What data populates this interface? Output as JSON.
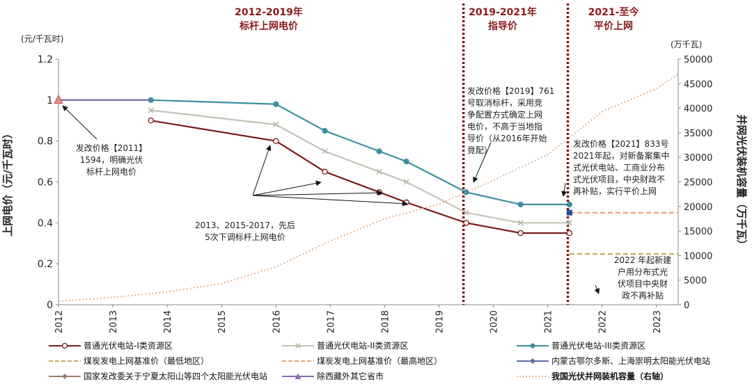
{
  "chart_data": {
    "type": "line",
    "ylabel": "上网电价（元/千瓦时）",
    "y2label": "并网光伏装机容量（万千瓦）",
    "y_unit": "(元/千瓦时)",
    "y2_unit": "(万千瓦)",
    "ylim": [
      0,
      1.2
    ],
    "y2lim": [
      0,
      50000
    ],
    "yticks": [
      "0",
      "0.2",
      "0.4",
      "0.6",
      "0.8",
      "1",
      "1.2"
    ],
    "y2ticks": [
      "0",
      "5000",
      "10000",
      "15000",
      "20000",
      "25000",
      "30000",
      "35000",
      "40000",
      "45000",
      "50000"
    ],
    "xticks": [
      "2012",
      "2013",
      "2014",
      "2015",
      "2016",
      "2017",
      "2018",
      "2019",
      "2020",
      "2021",
      "2022",
      "2023"
    ],
    "xlim": [
      2012,
      2023.4
    ],
    "grid": false,
    "periods": [
      {
        "line1": "2012-2019年",
        "line2": "标杆上网电价"
      },
      {
        "line1": "2019-2021年",
        "line2": "指导价"
      },
      {
        "line1": "2021-至今",
        "line2": "平价上网"
      }
    ],
    "dividers": [
      2019.45,
      2021.37
    ],
    "series": [
      {
        "name": "普通光伏电站-I类资源区",
        "color": "#7b1a1a",
        "marker": "circle-open",
        "x": [
          2013.7,
          2016.0,
          2016.9,
          2017.9,
          2018.4,
          2019.5,
          2020.5,
          2021.4
        ],
        "y": [
          0.9,
          0.8,
          0.65,
          0.55,
          0.5,
          0.4,
          0.35,
          0.35
        ]
      },
      {
        "name": "普通光伏电站-II类资源区",
        "color": "#c5c2b6",
        "marker": "x",
        "x": [
          2013.7,
          2016.0,
          2016.9,
          2017.9,
          2018.4,
          2019.5,
          2020.5,
          2021.4
        ],
        "y": [
          0.95,
          0.88,
          0.75,
          0.65,
          0.6,
          0.45,
          0.4,
          0.4
        ]
      },
      {
        "name": "普通光伏电站-III类资源区",
        "color": "#3a8f9e",
        "marker": "circle",
        "x": [
          2012.0,
          2013.7,
          2016.0,
          2016.9,
          2017.9,
          2018.4,
          2019.5,
          2020.5,
          2021.4
        ],
        "y": [
          1.0,
          1.0,
          0.98,
          0.85,
          0.75,
          0.7,
          0.55,
          0.49,
          0.49
        ]
      },
      {
        "name": "煤炭发电上网基准价（最低地区）",
        "color": "#c9a55a",
        "style": "dashed",
        "x": [
          2021.4,
          2023.4
        ],
        "y": [
          0.2482,
          0.2482
        ]
      },
      {
        "name": "煤炭发电上网基准价（最高地区）",
        "color": "#e8a070",
        "style": "dashed",
        "x": [
          2021.4,
          2023.4
        ],
        "y": [
          0.4498,
          0.4498
        ]
      },
      {
        "name": "内蒙古鄂尔多斯、上海崇明太阳能光伏电站",
        "color": "#5a6aa8",
        "marker": "square",
        "x": [
          2021.4
        ],
        "y": [
          0.45
        ]
      },
      {
        "name": "国家发改委关于宁夏太阳山等四个太阳能光伏电站",
        "color": "#a07a6a",
        "marker": "diamond",
        "x": [],
        "y": []
      },
      {
        "name": "除西藏外其它省市",
        "color": "#8a6ab0",
        "marker": "triangle",
        "x": [
          2012.0,
          2013.7
        ],
        "y": [
          1.0,
          1.0
        ]
      },
      {
        "name": "我国光伏并网装机容量（右轴）",
        "color": "#e0a070",
        "style": "dotted",
        "axis": "right",
        "x": [
          2012.0,
          2013.0,
          2014.0,
          2015.0,
          2016.0,
          2017.0,
          2018.0,
          2019.0,
          2020.0,
          2021.0,
          2022.0,
          2023.0,
          2023.4
        ],
        "y": [
          700,
          1500,
          2600,
          4300,
          7700,
          13000,
          17500,
          20500,
          25300,
          30600,
          39300,
          44000,
          47000
        ]
      }
    ],
    "annotations": [
      {
        "text": [
          "发改价格【2011】",
          "1594，明确光伏",
          "标杆上网电价"
        ]
      },
      {
        "text": [
          "2013、2015-2017，先后",
          "5次下调标杆上网电价"
        ]
      },
      {
        "text": [
          "发改价格【2019】761",
          "号取消标杆，采用竞",
          "争配置方式确定上网",
          "电价，不高于当地指",
          "导价（从2016年开始",
          "竟配）"
        ]
      },
      {
        "text": [
          "发改价格【2021】833号",
          "2021年起，对新备案集中",
          "式光伏电站、工商业分布",
          "式光伏项目，中央财政不",
          "再补贴，实行平价上网"
        ]
      },
      {
        "text": [
          "2022 年起新建",
          "户用分布式光",
          "伏项目中央财",
          "政不再补贴"
        ]
      }
    ]
  }
}
